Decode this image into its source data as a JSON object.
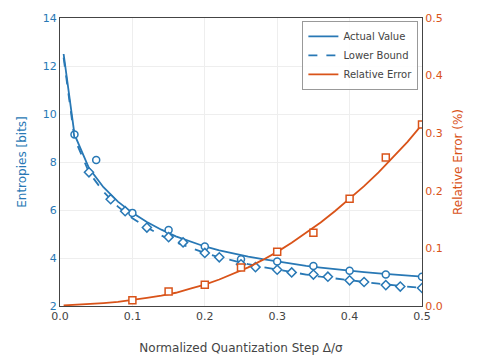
{
  "chart_data": {
    "type": "line",
    "xlabel": "Normalized Quantization Step Δ/σ",
    "ylabel": "Entropies [bits]",
    "y2label": "Relative Error (%)",
    "xlim": [
      0,
      0.5
    ],
    "ylim": [
      2,
      14
    ],
    "y2lim": [
      0,
      0.5
    ],
    "xticks": [
      {
        "value": 0,
        "label": "0.0"
      },
      0.1,
      0.2,
      0.3,
      0.4,
      0.5
    ],
    "yticks": [
      2,
      4,
      6,
      8,
      10,
      12,
      14
    ],
    "y2ticks": [
      {
        "value": 0,
        "label": "0.0"
      },
      0.1,
      0.2,
      0.3,
      0.4,
      0.5
    ],
    "grid": true,
    "legend": "upper right",
    "series": [
      {
        "name": "Actual Value",
        "type": "line",
        "color": "#2878B5",
        "line_style": "solid",
        "x": [
          0.005,
          0.02,
          0.04,
          0.06,
          0.08,
          0.1,
          0.12,
          0.14,
          0.16,
          0.18,
          0.2,
          0.22,
          0.24,
          0.26,
          0.28,
          0.3,
          0.32,
          0.34,
          0.36,
          0.38,
          0.4,
          0.42,
          0.44,
          0.46,
          0.48,
          0.5
        ],
        "values": [
          12.5,
          9.15,
          7.75,
          6.95,
          6.35,
          5.88,
          5.5,
          5.18,
          4.9,
          4.68,
          4.48,
          4.32,
          4.18,
          4.06,
          3.95,
          3.85,
          3.75,
          3.67,
          3.6,
          3.53,
          3.47,
          3.41,
          3.36,
          3.31,
          3.26,
          3.22
        ]
      },
      {
        "type": "scatter",
        "color": "#2878B5",
        "marker": "circle",
        "x": [
          0.02,
          0.05,
          0.1,
          0.15,
          0.2,
          0.25,
          0.3,
          0.35,
          0.4,
          0.45,
          0.5
        ],
        "values": [
          9.15,
          8.08,
          5.88,
          5.17,
          4.48,
          3.95,
          3.85,
          3.67,
          3.47,
          3.31,
          3.22
        ]
      },
      {
        "name": "Lower Bound",
        "type": "line",
        "color": "#2878B5",
        "line_style": "dashed",
        "x": [
          0.005,
          0.02,
          0.04,
          0.06,
          0.08,
          0.1,
          0.12,
          0.14,
          0.16,
          0.18,
          0.2,
          0.22,
          0.24,
          0.26,
          0.28,
          0.3,
          0.32,
          0.34,
          0.36,
          0.38,
          0.4,
          0.42,
          0.44,
          0.46,
          0.48,
          0.5
        ],
        "values": [
          12.35,
          8.98,
          7.57,
          6.76,
          6.14,
          5.66,
          5.27,
          4.94,
          4.65,
          4.42,
          4.21,
          4.03,
          3.88,
          3.74,
          3.62,
          3.51,
          3.4,
          3.31,
          3.22,
          3.14,
          3.07,
          3.0,
          2.93,
          2.87,
          2.81,
          2.75
        ]
      },
      {
        "type": "scatter",
        "color": "#2878B5",
        "marker": "diamond",
        "x": [
          0.04,
          0.07,
          0.09,
          0.12,
          0.15,
          0.17,
          0.2,
          0.22,
          0.25,
          0.27,
          0.3,
          0.32,
          0.35,
          0.37,
          0.4,
          0.42,
          0.45,
          0.47,
          0.5
        ],
        "values": [
          7.57,
          6.45,
          5.95,
          5.27,
          4.87,
          4.65,
          4.21,
          4.03,
          3.74,
          3.62,
          3.51,
          3.4,
          3.31,
          3.22,
          3.07,
          3.0,
          2.87,
          2.81,
          2.75
        ]
      },
      {
        "name": "Relative Error",
        "type": "line",
        "color": "#D95319",
        "line_style": "solid",
        "axis": "y2",
        "x": [
          0.005,
          0.02,
          0.04,
          0.06,
          0.08,
          0.1,
          0.12,
          0.14,
          0.16,
          0.18,
          0.2,
          0.22,
          0.24,
          0.26,
          0.28,
          0.3,
          0.32,
          0.34,
          0.36,
          0.38,
          0.4,
          0.42,
          0.44,
          0.46,
          0.48,
          0.5
        ],
        "values": [
          0.001,
          0.002,
          0.003,
          0.005,
          0.007,
          0.01,
          0.014,
          0.018,
          0.023,
          0.03,
          0.037,
          0.046,
          0.056,
          0.067,
          0.08,
          0.094,
          0.11,
          0.127,
          0.145,
          0.165,
          0.186,
          0.208,
          0.232,
          0.258,
          0.285,
          0.315
        ]
      },
      {
        "type": "scatter",
        "color": "#D95319",
        "marker": "square",
        "axis": "y2",
        "x": [
          0.1,
          0.15,
          0.2,
          0.25,
          0.3,
          0.35,
          0.4,
          0.45,
          0.5
        ],
        "values": [
          0.01,
          0.025,
          0.037,
          0.067,
          0.094,
          0.127,
          0.186,
          0.258,
          0.315
        ]
      }
    ]
  }
}
